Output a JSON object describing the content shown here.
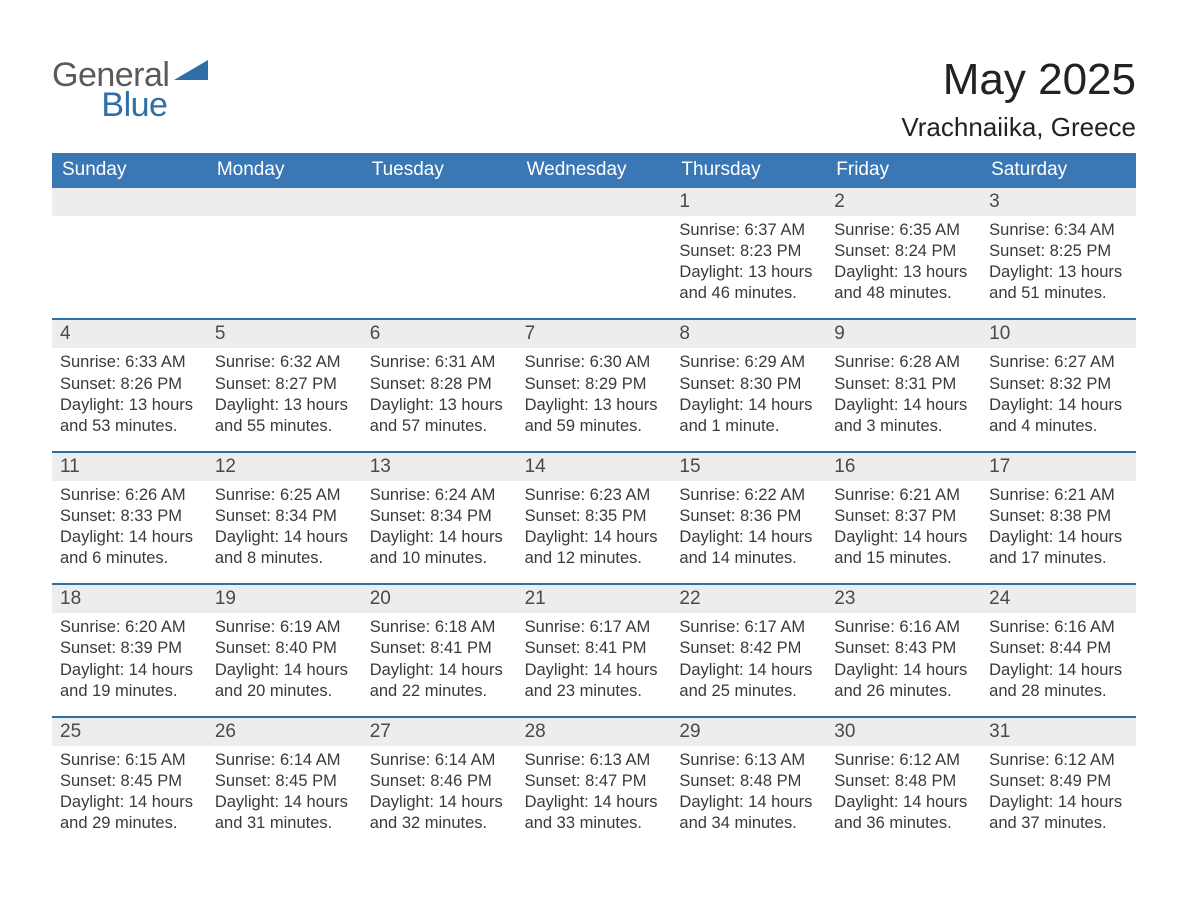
{
  "logo": {
    "word1": "General",
    "word2": "Blue"
  },
  "header": {
    "month_title": "May 2025",
    "location": "Vrachnaiika, Greece"
  },
  "colors": {
    "header_blue": "#3a78b5",
    "accent_blue": "#2f6fa8",
    "row_bg": "#ededed",
    "logo_gray": "#5a5a5a",
    "logo_blue": "#2f6fa8"
  },
  "days_of_week": [
    "Sunday",
    "Monday",
    "Tuesday",
    "Wednesday",
    "Thursday",
    "Friday",
    "Saturday"
  ],
  "weeks": [
    [
      null,
      null,
      null,
      null,
      {
        "n": "1",
        "sunrise": "Sunrise: 6:37 AM",
        "sunset": "Sunset: 8:23 PM",
        "daylight1": "Daylight: 13 hours",
        "daylight2": "and 46 minutes."
      },
      {
        "n": "2",
        "sunrise": "Sunrise: 6:35 AM",
        "sunset": "Sunset: 8:24 PM",
        "daylight1": "Daylight: 13 hours",
        "daylight2": "and 48 minutes."
      },
      {
        "n": "3",
        "sunrise": "Sunrise: 6:34 AM",
        "sunset": "Sunset: 8:25 PM",
        "daylight1": "Daylight: 13 hours",
        "daylight2": "and 51 minutes."
      }
    ],
    [
      {
        "n": "4",
        "sunrise": "Sunrise: 6:33 AM",
        "sunset": "Sunset: 8:26 PM",
        "daylight1": "Daylight: 13 hours",
        "daylight2": "and 53 minutes."
      },
      {
        "n": "5",
        "sunrise": "Sunrise: 6:32 AM",
        "sunset": "Sunset: 8:27 PM",
        "daylight1": "Daylight: 13 hours",
        "daylight2": "and 55 minutes."
      },
      {
        "n": "6",
        "sunrise": "Sunrise: 6:31 AM",
        "sunset": "Sunset: 8:28 PM",
        "daylight1": "Daylight: 13 hours",
        "daylight2": "and 57 minutes."
      },
      {
        "n": "7",
        "sunrise": "Sunrise: 6:30 AM",
        "sunset": "Sunset: 8:29 PM",
        "daylight1": "Daylight: 13 hours",
        "daylight2": "and 59 minutes."
      },
      {
        "n": "8",
        "sunrise": "Sunrise: 6:29 AM",
        "sunset": "Sunset: 8:30 PM",
        "daylight1": "Daylight: 14 hours",
        "daylight2": "and 1 minute."
      },
      {
        "n": "9",
        "sunrise": "Sunrise: 6:28 AM",
        "sunset": "Sunset: 8:31 PM",
        "daylight1": "Daylight: 14 hours",
        "daylight2": "and 3 minutes."
      },
      {
        "n": "10",
        "sunrise": "Sunrise: 6:27 AM",
        "sunset": "Sunset: 8:32 PM",
        "daylight1": "Daylight: 14 hours",
        "daylight2": "and 4 minutes."
      }
    ],
    [
      {
        "n": "11",
        "sunrise": "Sunrise: 6:26 AM",
        "sunset": "Sunset: 8:33 PM",
        "daylight1": "Daylight: 14 hours",
        "daylight2": "and 6 minutes."
      },
      {
        "n": "12",
        "sunrise": "Sunrise: 6:25 AM",
        "sunset": "Sunset: 8:34 PM",
        "daylight1": "Daylight: 14 hours",
        "daylight2": "and 8 minutes."
      },
      {
        "n": "13",
        "sunrise": "Sunrise: 6:24 AM",
        "sunset": "Sunset: 8:34 PM",
        "daylight1": "Daylight: 14 hours",
        "daylight2": "and 10 minutes."
      },
      {
        "n": "14",
        "sunrise": "Sunrise: 6:23 AM",
        "sunset": "Sunset: 8:35 PM",
        "daylight1": "Daylight: 14 hours",
        "daylight2": "and 12 minutes."
      },
      {
        "n": "15",
        "sunrise": "Sunrise: 6:22 AM",
        "sunset": "Sunset: 8:36 PM",
        "daylight1": "Daylight: 14 hours",
        "daylight2": "and 14 minutes."
      },
      {
        "n": "16",
        "sunrise": "Sunrise: 6:21 AM",
        "sunset": "Sunset: 8:37 PM",
        "daylight1": "Daylight: 14 hours",
        "daylight2": "and 15 minutes."
      },
      {
        "n": "17",
        "sunrise": "Sunrise: 6:21 AM",
        "sunset": "Sunset: 8:38 PM",
        "daylight1": "Daylight: 14 hours",
        "daylight2": "and 17 minutes."
      }
    ],
    [
      {
        "n": "18",
        "sunrise": "Sunrise: 6:20 AM",
        "sunset": "Sunset: 8:39 PM",
        "daylight1": "Daylight: 14 hours",
        "daylight2": "and 19 minutes."
      },
      {
        "n": "19",
        "sunrise": "Sunrise: 6:19 AM",
        "sunset": "Sunset: 8:40 PM",
        "daylight1": "Daylight: 14 hours",
        "daylight2": "and 20 minutes."
      },
      {
        "n": "20",
        "sunrise": "Sunrise: 6:18 AM",
        "sunset": "Sunset: 8:41 PM",
        "daylight1": "Daylight: 14 hours",
        "daylight2": "and 22 minutes."
      },
      {
        "n": "21",
        "sunrise": "Sunrise: 6:17 AM",
        "sunset": "Sunset: 8:41 PM",
        "daylight1": "Daylight: 14 hours",
        "daylight2": "and 23 minutes."
      },
      {
        "n": "22",
        "sunrise": "Sunrise: 6:17 AM",
        "sunset": "Sunset: 8:42 PM",
        "daylight1": "Daylight: 14 hours",
        "daylight2": "and 25 minutes."
      },
      {
        "n": "23",
        "sunrise": "Sunrise: 6:16 AM",
        "sunset": "Sunset: 8:43 PM",
        "daylight1": "Daylight: 14 hours",
        "daylight2": "and 26 minutes."
      },
      {
        "n": "24",
        "sunrise": "Sunrise: 6:16 AM",
        "sunset": "Sunset: 8:44 PM",
        "daylight1": "Daylight: 14 hours",
        "daylight2": "and 28 minutes."
      }
    ],
    [
      {
        "n": "25",
        "sunrise": "Sunrise: 6:15 AM",
        "sunset": "Sunset: 8:45 PM",
        "daylight1": "Daylight: 14 hours",
        "daylight2": "and 29 minutes."
      },
      {
        "n": "26",
        "sunrise": "Sunrise: 6:14 AM",
        "sunset": "Sunset: 8:45 PM",
        "daylight1": "Daylight: 14 hours",
        "daylight2": "and 31 minutes."
      },
      {
        "n": "27",
        "sunrise": "Sunrise: 6:14 AM",
        "sunset": "Sunset: 8:46 PM",
        "daylight1": "Daylight: 14 hours",
        "daylight2": "and 32 minutes."
      },
      {
        "n": "28",
        "sunrise": "Sunrise: 6:13 AM",
        "sunset": "Sunset: 8:47 PM",
        "daylight1": "Daylight: 14 hours",
        "daylight2": "and 33 minutes."
      },
      {
        "n": "29",
        "sunrise": "Sunrise: 6:13 AM",
        "sunset": "Sunset: 8:48 PM",
        "daylight1": "Daylight: 14 hours",
        "daylight2": "and 34 minutes."
      },
      {
        "n": "30",
        "sunrise": "Sunrise: 6:12 AM",
        "sunset": "Sunset: 8:48 PM",
        "daylight1": "Daylight: 14 hours",
        "daylight2": "and 36 minutes."
      },
      {
        "n": "31",
        "sunrise": "Sunrise: 6:12 AM",
        "sunset": "Sunset: 8:49 PM",
        "daylight1": "Daylight: 14 hours",
        "daylight2": "and 37 minutes."
      }
    ]
  ]
}
